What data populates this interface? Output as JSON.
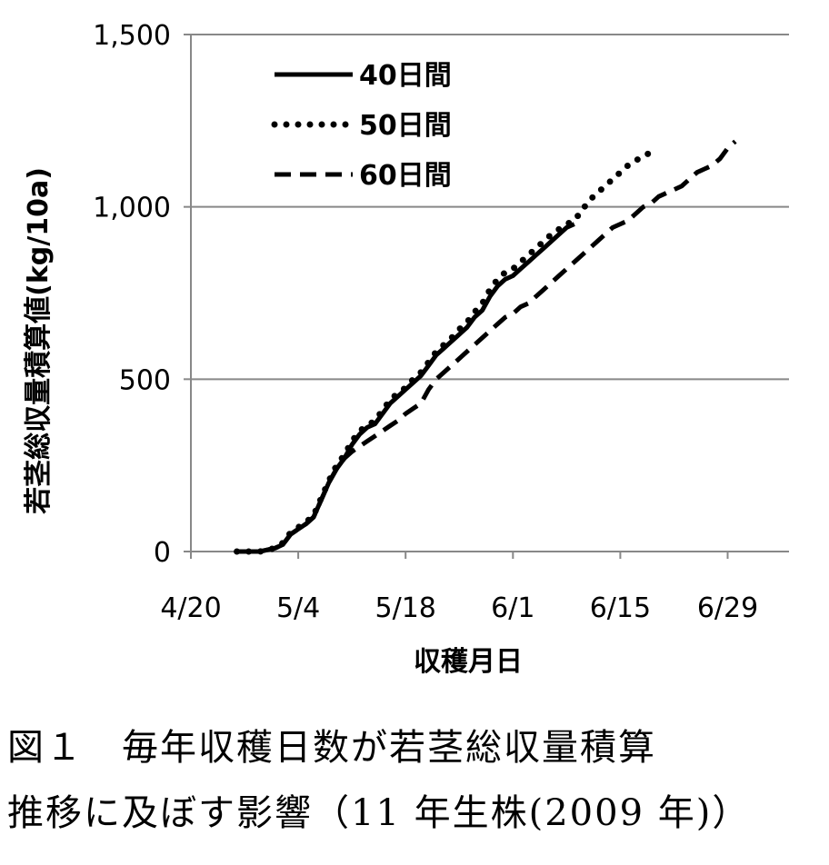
{
  "caption": {
    "line1": "図１　毎年収穫日数が若茎総収量積算",
    "line2": "推移に及ぼす影響（11 年生株(2009 年)）"
  },
  "chart_data": {
    "type": "line",
    "title": "",
    "xlabel": "収穫月日",
    "ylabel": "若茎総収量積算値(kg/10a)",
    "x_tick_labels": [
      "4/20",
      "5/4",
      "5/18",
      "6/1",
      "6/15",
      "6/29"
    ],
    "x_tick_days": [
      0,
      14,
      28,
      42,
      56,
      70
    ],
    "xlim_days": [
      0,
      78
    ],
    "x_unit_note": "x values are days after 4/20",
    "y_tick_labels": [
      "0",
      "500",
      "1,000",
      "1,500"
    ],
    "y_tick_values": [
      0,
      500,
      1000,
      1500
    ],
    "ylim": [
      0,
      1500
    ],
    "grid": true,
    "legend_position": "top-left",
    "series": [
      {
        "name": "40日間",
        "style": "solid",
        "x": [
          6,
          7,
          8,
          9,
          10,
          11,
          12,
          13,
          14,
          15,
          16,
          17,
          18,
          19,
          20,
          21,
          22,
          23,
          24,
          25,
          26,
          27,
          28,
          29,
          30,
          31,
          32,
          33,
          34,
          35,
          36,
          37,
          38,
          39,
          40,
          41,
          42,
          43,
          44,
          45,
          46,
          47,
          48,
          49,
          50
        ],
        "y": [
          0,
          0,
          0,
          0,
          5,
          10,
          20,
          50,
          65,
          80,
          100,
          150,
          200,
          240,
          270,
          310,
          340,
          360,
          370,
          400,
          430,
          450,
          470,
          490,
          510,
          540,
          570,
          590,
          610,
          630,
          650,
          680,
          700,
          740,
          770,
          790,
          800,
          820,
          840,
          860,
          880,
          900,
          920,
          940,
          950
        ]
      },
      {
        "name": "50日間",
        "style": "dotted",
        "x": [
          6,
          7,
          8,
          9,
          10,
          11,
          12,
          13,
          14,
          15,
          16,
          17,
          18,
          19,
          20,
          21,
          22,
          23,
          24,
          25,
          26,
          27,
          28,
          29,
          30,
          31,
          32,
          33,
          34,
          35,
          36,
          37,
          38,
          39,
          40,
          41,
          42,
          43,
          44,
          45,
          46,
          47,
          48,
          49,
          50,
          51,
          52,
          53,
          54,
          55,
          56,
          57,
          58,
          59,
          60
        ],
        "y": [
          0,
          0,
          0,
          0,
          5,
          10,
          25,
          55,
          70,
          85,
          105,
          155,
          205,
          250,
          280,
          320,
          350,
          365,
          380,
          410,
          440,
          460,
          475,
          500,
          520,
          550,
          580,
          600,
          620,
          645,
          665,
          695,
          720,
          760,
          790,
          810,
          820,
          840,
          860,
          880,
          900,
          920,
          935,
          950,
          960,
          990,
          1020,
          1040,
          1060,
          1080,
          1100,
          1120,
          1135,
          1145,
          1160
        ]
      },
      {
        "name": "60日間",
        "style": "dashed",
        "x": [
          6,
          7,
          8,
          9,
          10,
          11,
          12,
          13,
          14,
          15,
          16,
          17,
          18,
          19,
          20,
          21,
          22,
          23,
          24,
          25,
          26,
          27,
          28,
          29,
          30,
          31,
          32,
          33,
          34,
          35,
          36,
          37,
          38,
          39,
          40,
          41,
          42,
          43,
          44,
          45,
          46,
          47,
          48,
          49,
          50,
          51,
          52,
          53,
          54,
          55,
          56,
          57,
          58,
          59,
          60,
          61,
          62,
          63,
          64,
          65,
          66,
          67,
          68,
          69,
          70,
          71
        ],
        "y": [
          0,
          0,
          0,
          0,
          5,
          10,
          20,
          50,
          65,
          80,
          100,
          150,
          200,
          240,
          270,
          290,
          305,
          320,
          335,
          350,
          365,
          380,
          400,
          415,
          430,
          470,
          500,
          520,
          540,
          560,
          580,
          600,
          620,
          640,
          660,
          680,
          690,
          710,
          720,
          740,
          760,
          780,
          800,
          820,
          840,
          860,
          880,
          900,
          920,
          940,
          950,
          960,
          980,
          1000,
          1010,
          1030,
          1040,
          1050,
          1060,
          1080,
          1100,
          1110,
          1120,
          1140,
          1170,
          1190
        ]
      }
    ]
  }
}
